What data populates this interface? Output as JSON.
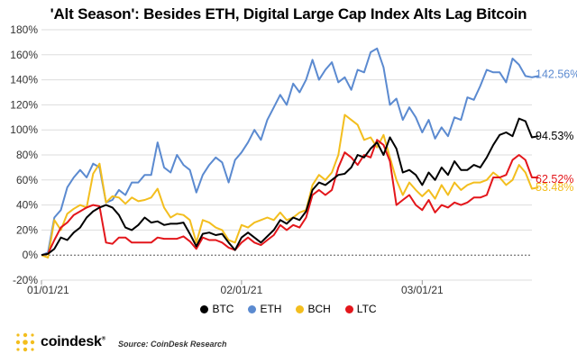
{
  "chart_data": {
    "type": "line",
    "title": "'Alt Season': Besides ETH, Digital Large Cap Index Alts Lag Bitcoin",
    "x_ticks": [
      "01/01/21",
      "02/01/21",
      "03/01/21"
    ],
    "x_tick_index": [
      0,
      31,
      59
    ],
    "x_range": [
      0,
      76
    ],
    "ylim": [
      -20,
      180
    ],
    "y_ticks": [
      "-20%",
      "0%",
      "20%",
      "40%",
      "60%",
      "80%",
      "100%",
      "120%",
      "140%",
      "160%",
      "180%"
    ],
    "y_tick_values": [
      -20,
      0,
      20,
      40,
      60,
      80,
      100,
      120,
      140,
      160,
      180
    ],
    "zero_line": "dotted",
    "legend_position": "bottom",
    "series": [
      {
        "name": "BTC",
        "color": "#000000",
        "end_label": "94.53%",
        "values": [
          0,
          1,
          5,
          14,
          12,
          18,
          22,
          30,
          35,
          38,
          40,
          38,
          32,
          22,
          20,
          24,
          30,
          26,
          27,
          24,
          25,
          25,
          26,
          17,
          7,
          17,
          18,
          16,
          17,
          10,
          4,
          14,
          18,
          14,
          10,
          15,
          20,
          28,
          25,
          30,
          28,
          35,
          52,
          58,
          56,
          60,
          64,
          65,
          70,
          80,
          78,
          85,
          90,
          80,
          94,
          85,
          66,
          68,
          64,
          56,
          66,
          60,
          70,
          64,
          75,
          68,
          68,
          72,
          70,
          78,
          88,
          96,
          98,
          95,
          109,
          107,
          94,
          95
        ]
      },
      {
        "name": "ETH",
        "color": "#5b8ad0",
        "end_label": "142.56%",
        "values": [
          0,
          2,
          30,
          36,
          54,
          62,
          68,
          62,
          73,
          70,
          42,
          44,
          52,
          48,
          58,
          58,
          64,
          64,
          90,
          70,
          66,
          80,
          72,
          68,
          50,
          64,
          72,
          78,
          74,
          58,
          76,
          82,
          90,
          100,
          92,
          108,
          118,
          128,
          120,
          137,
          130,
          140,
          156,
          140,
          148,
          154,
          138,
          142,
          132,
          148,
          146,
          162,
          165,
          150,
          120,
          125,
          108,
          118,
          110,
          98,
          108,
          93,
          102,
          95,
          110,
          108,
          126,
          124,
          135,
          148,
          146,
          146,
          138,
          157,
          152,
          143,
          142,
          143
        ]
      },
      {
        "name": "BCH",
        "color": "#f3be1e",
        "end_label": "53.48%",
        "values": [
          0,
          -2,
          28,
          20,
          33,
          37,
          40,
          38,
          65,
          73,
          42,
          47,
          46,
          41,
          46,
          43,
          44,
          46,
          53,
          38,
          30,
          33,
          32,
          28,
          10,
          28,
          26,
          22,
          20,
          12,
          10,
          24,
          22,
          26,
          28,
          30,
          28,
          34,
          28,
          30,
          34,
          36,
          56,
          64,
          60,
          66,
          80,
          112,
          108,
          104,
          92,
          94,
          86,
          96,
          78,
          60,
          48,
          58,
          52,
          47,
          52,
          45,
          56,
          48,
          58,
          52,
          56,
          58,
          58,
          60,
          66,
          62,
          56,
          60,
          72,
          66,
          53,
          54
        ]
      },
      {
        "name": "LTC",
        "color": "#e3161b",
        "end_label": "62.52%",
        "values": [
          0,
          1,
          12,
          22,
          26,
          32,
          35,
          38,
          40,
          39,
          10,
          9,
          14,
          14,
          10,
          10,
          10,
          10,
          14,
          13,
          13,
          13,
          15,
          11,
          5,
          14,
          12,
          12,
          10,
          6,
          4,
          10,
          14,
          10,
          8,
          12,
          16,
          24,
          20,
          24,
          22,
          30,
          48,
          52,
          48,
          52,
          70,
          82,
          78,
          72,
          80,
          78,
          92,
          88,
          75,
          40,
          44,
          48,
          40,
          36,
          44,
          34,
          40,
          38,
          42,
          40,
          42,
          46,
          46,
          48,
          62,
          62,
          64,
          76,
          80,
          76,
          62,
          62
        ]
      }
    ]
  },
  "legend": {
    "items": [
      {
        "label": "BTC",
        "color": "#000000"
      },
      {
        "label": "ETH",
        "color": "#5b8ad0"
      },
      {
        "label": "BCH",
        "color": "#f3be1e"
      },
      {
        "label": "LTC",
        "color": "#e3161b"
      }
    ]
  },
  "footer": {
    "logo_text": "coindesk",
    "logo_tm": "®",
    "source": "Source: CoinDesk Research",
    "logo_color": "#f3be1e"
  }
}
